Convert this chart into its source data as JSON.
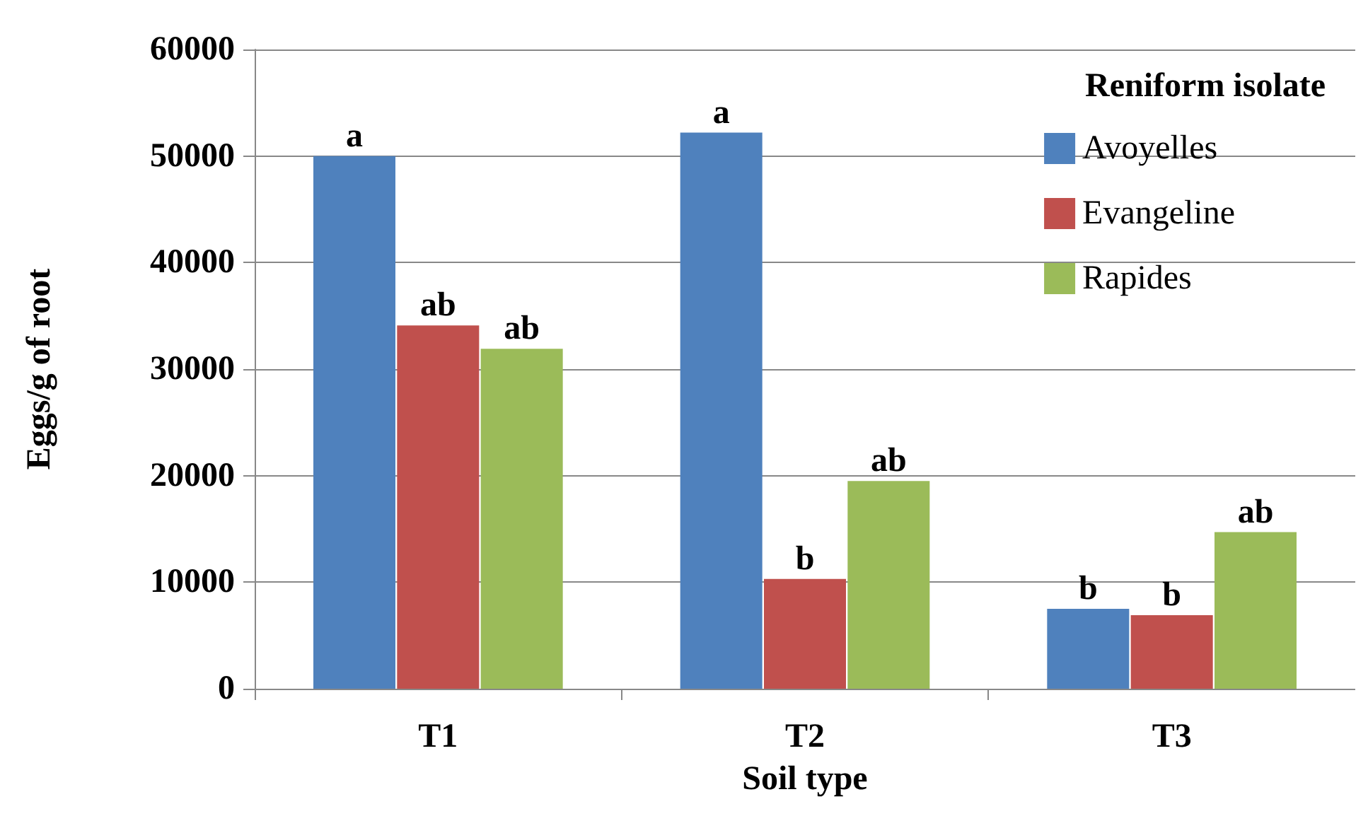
{
  "chart_data": {
    "type": "bar",
    "xlabel": "Soil type",
    "ylabel": "Eggs/g of root",
    "legend_title": "Reniform isolate",
    "categories": [
      "T1",
      "T2",
      "T3"
    ],
    "series": [
      {
        "name": "Avoyelles",
        "color": "#4f81bd",
        "values": [
          50000,
          52200,
          7500
        ],
        "value_labels": [
          "a",
          "a",
          "b"
        ]
      },
      {
        "name": "Evangeline",
        "color": "#c0504d",
        "values": [
          34100,
          10300,
          6900
        ],
        "value_labels": [
          "ab",
          "b",
          "b"
        ]
      },
      {
        "name": "Rapides",
        "color": "#9bbb59",
        "values": [
          31900,
          19500,
          14700
        ],
        "value_labels": [
          "ab",
          "ab",
          "ab"
        ]
      }
    ],
    "ylim": [
      0,
      60000
    ],
    "yticks": [
      0,
      10000,
      20000,
      30000,
      40000,
      50000,
      60000
    ],
    "grid": "y",
    "legend": "top right"
  }
}
